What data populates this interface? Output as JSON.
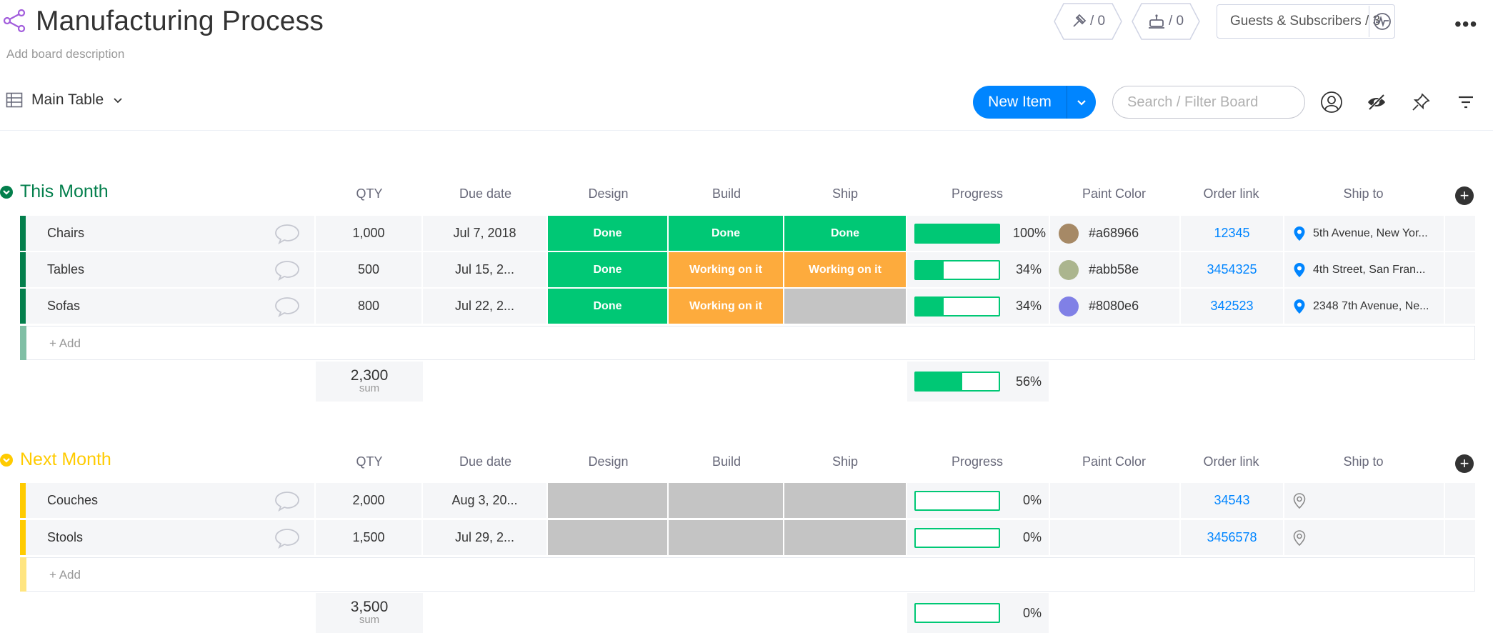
{
  "header": {
    "title": "Manufacturing Process",
    "description": "Add board description",
    "activity_count": "/ 0",
    "integrations_count": "/ 0",
    "guests_label": "Guests & Subscribers / 3"
  },
  "toolbar": {
    "view_label": "Main Table",
    "new_item_label": "New Item",
    "search_placeholder": "Search / Filter Board"
  },
  "columns": {
    "qty": "QTY",
    "due": "Due date",
    "design": "Design",
    "build": "Build",
    "ship": "Ship",
    "progress": "Progress",
    "paint": "Paint Color",
    "order": "Order link",
    "shipto": "Ship to"
  },
  "groups": [
    {
      "title": "This Month",
      "color": "#037f4c",
      "add_label": "+ Add",
      "sum_value": "2,300",
      "sum_label": "sum",
      "sum_progress": 56,
      "sum_progress_text": "56%",
      "rows": [
        {
          "name": "Chairs",
          "qty": "1,000",
          "due": "Jul 7, 2018",
          "design": "Done",
          "build": "Done",
          "ship": "Done",
          "progress": 100,
          "progress_text": "100%",
          "paint_hex": "#a68966",
          "paint_label": "#a68966",
          "order": "12345",
          "shipto": "5th Avenue, New Yor..."
        },
        {
          "name": "Tables",
          "qty": "500",
          "due": "Jul 15, 2...",
          "design": "Done",
          "build": "Working on it",
          "ship": "Working on it",
          "progress": 34,
          "progress_text": "34%",
          "paint_hex": "#abb58e",
          "paint_label": "#abb58e",
          "order": "3454325",
          "shipto": "4th Street, San Fran..."
        },
        {
          "name": "Sofas",
          "qty": "800",
          "due": "Jul 22, 2...",
          "design": "Done",
          "build": "Working on it",
          "ship": "",
          "progress": 34,
          "progress_text": "34%",
          "paint_hex": "#8080e6",
          "paint_label": "#8080e6",
          "order": "342523",
          "shipto": "2348 7th Avenue, Ne..."
        }
      ]
    },
    {
      "title": "Next Month",
      "color": "#ffcb00",
      "add_label": "+ Add",
      "sum_value": "3,500",
      "sum_label": "sum",
      "sum_progress": 0,
      "sum_progress_text": "0%",
      "rows": [
        {
          "name": "Couches",
          "qty": "2,000",
          "due": "Aug 3, 20...",
          "design": "",
          "build": "",
          "ship": "",
          "progress": 0,
          "progress_text": "0%",
          "paint_hex": "",
          "paint_label": "",
          "order": "34543",
          "shipto": ""
        },
        {
          "name": "Stools",
          "qty": "1,500",
          "due": "Jul 29, 2...",
          "design": "",
          "build": "",
          "ship": "",
          "progress": 0,
          "progress_text": "0%",
          "paint_hex": "",
          "paint_label": "",
          "order": "3456578",
          "shipto": ""
        }
      ]
    }
  ],
  "colors": {
    "done": "#00c875",
    "working": "#fdab3d",
    "empty": "#c4c4c4",
    "primary": "#0085ff"
  }
}
